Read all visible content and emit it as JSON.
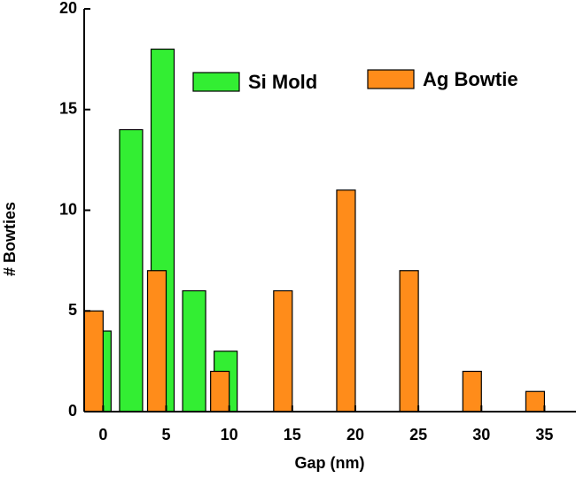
{
  "chart_data": {
    "type": "bar",
    "x_label": "Gap (nm)",
    "y_label": "# Bowties",
    "series": [
      {
        "name": "Si Mold",
        "color": "#33ee33",
        "x": [
          0,
          2.5,
          5,
          7.5,
          10
        ],
        "values": [
          4,
          14,
          18,
          6,
          3
        ]
      },
      {
        "name": "Ag Bowtie",
        "color": "#ff8c1a",
        "x": [
          0,
          5,
          10,
          15,
          20,
          25,
          30,
          35
        ],
        "values": [
          5,
          7,
          2,
          6,
          11,
          7,
          2,
          1
        ]
      }
    ],
    "xlim": [
      -1.5,
      37.5
    ],
    "xticks": [
      0,
      5,
      10,
      15,
      20,
      25,
      30,
      35
    ],
    "ylim": [
      0,
      20
    ],
    "yticks": [
      0,
      5,
      10,
      15,
      20
    ],
    "grid": false
  }
}
